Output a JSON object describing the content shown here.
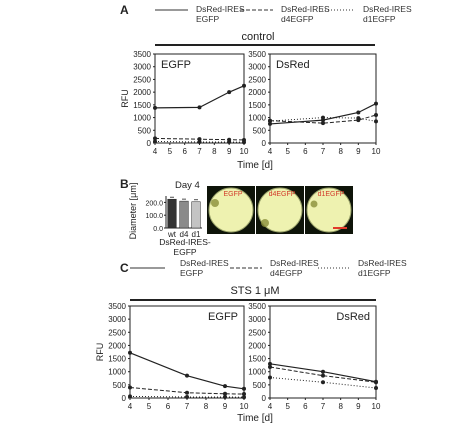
{
  "panel_a": {
    "letter": "A",
    "header": "control",
    "legend": [
      {
        "line1": "DsRed-IRES",
        "line2": "EGFP",
        "style": "solid"
      },
      {
        "line1": "DsRed-IRES",
        "line2": "d4EGFP",
        "style": "dashed"
      },
      {
        "line1": "DsRed-IRES",
        "line2": "d1EGFP",
        "style": "dotted"
      }
    ],
    "xlabel": "Time [d]"
  },
  "panel_b": {
    "letter": "B",
    "bar_title": "Day 4",
    "ylabel": "Diameter [μm]",
    "group_line1": "DsRed-IRES-",
    "group_line2": "EGFP",
    "wells": [
      {
        "label": "EGFP"
      },
      {
        "label": "d4EGFP"
      },
      {
        "label": "d1EGFP"
      }
    ],
    "colors": {
      "well_bg": "#0e1409",
      "well_fill": "#eef2b0",
      "well_label": "#d23a2a",
      "scale_bar": "#e23a2a"
    }
  },
  "panel_c": {
    "letter": "C",
    "header": "STS 1 μM",
    "legend": [
      {
        "line1": "DsRed-IRES",
        "line2": "EGFP",
        "style": "solid"
      },
      {
        "line1": "DsRed-IRES",
        "line2": "d4EGFP",
        "style": "dashed"
      },
      {
        "line1": "DsRed-IRES",
        "line2": "d1EGFP",
        "style": "dotted"
      }
    ],
    "xlabel": "Time [d]"
  },
  "chart_data": [
    {
      "id": "a_egfp",
      "type": "line",
      "title": "EGFP",
      "ylabel": "RFU",
      "x": [
        4,
        7,
        9,
        10
      ],
      "xticks": [
        4,
        5,
        6,
        7,
        8,
        9,
        10
      ],
      "xlim": [
        4,
        10
      ],
      "yticks": [
        0,
        500,
        1000,
        1500,
        2000,
        2500,
        3000,
        3500
      ],
      "ylim": [
        0,
        3500
      ],
      "series": [
        {
          "style": "solid",
          "values": [
            1380,
            1400,
            2000,
            2250
          ]
        },
        {
          "style": "dashed",
          "values": [
            180,
            150,
            130,
            120
          ]
        },
        {
          "style": "dotted",
          "values": [
            60,
            40,
            40,
            30
          ]
        }
      ]
    },
    {
      "id": "a_dsred",
      "type": "line",
      "title": "DsRed",
      "ylabel": "",
      "x": [
        4,
        7,
        9,
        10
      ],
      "xticks": [
        4,
        5,
        6,
        7,
        8,
        9,
        10
      ],
      "xlim": [
        4,
        10
      ],
      "yticks": [
        0,
        500,
        1000,
        1500,
        2000,
        2500,
        3000,
        3500
      ],
      "ylim": [
        0,
        3500
      ],
      "series": [
        {
          "style": "solid",
          "values": [
            750,
            900,
            1200,
            1550
          ]
        },
        {
          "style": "dashed",
          "values": [
            880,
            780,
            900,
            1100
          ]
        },
        {
          "style": "dotted",
          "values": [
            860,
            1000,
            980,
            850
          ]
        }
      ]
    },
    {
      "id": "b_bar",
      "type": "bar",
      "categories": [
        "wt",
        "d4",
        "d1"
      ],
      "values": [
        225,
        210,
        205
      ],
      "yticks": [
        0,
        100,
        200
      ],
      "ylim": [
        0,
        250
      ],
      "ytick_labels": [
        "0.0",
        "100.0",
        "200.0"
      ]
    },
    {
      "id": "c_egfp",
      "type": "line",
      "title": "EGFP",
      "ylabel": "RFU",
      "x": [
        4,
        7,
        9,
        10
      ],
      "xticks": [
        4,
        5,
        6,
        7,
        8,
        9,
        10
      ],
      "xlim": [
        4,
        10
      ],
      "yticks": [
        0,
        500,
        1000,
        1500,
        2000,
        2500,
        3000,
        3500
      ],
      "ylim": [
        0,
        3500
      ],
      "series": [
        {
          "style": "solid",
          "values": [
            1720,
            850,
            450,
            350
          ]
        },
        {
          "style": "dashed",
          "values": [
            400,
            200,
            160,
            150
          ]
        },
        {
          "style": "dotted",
          "values": [
            60,
            40,
            40,
            30
          ]
        }
      ]
    },
    {
      "id": "c_dsred",
      "type": "line",
      "title": "DsRed",
      "ylabel": "",
      "x": [
        4,
        7,
        10
      ],
      "xticks": [
        4,
        5,
        6,
        7,
        8,
        9,
        10
      ],
      "xlim": [
        4,
        10
      ],
      "yticks": [
        0,
        500,
        1000,
        1500,
        2000,
        2500,
        3000,
        3500
      ],
      "ylim": [
        0,
        3500
      ],
      "series": [
        {
          "style": "solid",
          "values": [
            1300,
            1000,
            620
          ]
        },
        {
          "style": "dashed",
          "values": [
            1180,
            850,
            600
          ]
        },
        {
          "style": "dotted",
          "values": [
            780,
            600,
            380
          ]
        }
      ]
    }
  ]
}
